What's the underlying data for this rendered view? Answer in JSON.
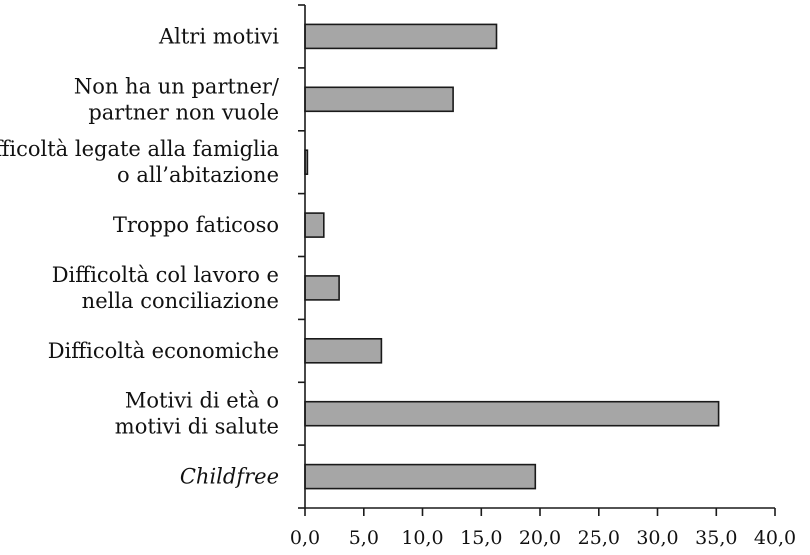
{
  "chart_data": {
    "type": "bar",
    "orientation": "horizontal",
    "title": "",
    "xlabel": "",
    "ylabel": "",
    "xlim": [
      0,
      40
    ],
    "xticks": [
      "0,0",
      "5,0",
      "10,0",
      "15,0",
      "20,0",
      "25,0",
      "30,0",
      "35,0",
      "40,0"
    ],
    "grid": false,
    "categories": [
      {
        "lines": [
          "Altri motivi"
        ],
        "italic": false
      },
      {
        "lines": [
          "Non ha un partner/",
          "partner non vuole"
        ],
        "italic": false
      },
      {
        "lines": [
          "Difficoltà legate alla famiglia",
          "o all’abitazione"
        ],
        "italic": false
      },
      {
        "lines": [
          "Troppo faticoso"
        ],
        "italic": false
      },
      {
        "lines": [
          "Difficoltà col lavoro e",
          "nella conciliazione"
        ],
        "italic": false
      },
      {
        "lines": [
          "Difficoltà economiche"
        ],
        "italic": false
      },
      {
        "lines": [
          "Motivi di età o",
          "motivi di salute"
        ],
        "italic": false
      },
      {
        "lines": [
          "Childfree"
        ],
        "italic": true
      }
    ],
    "values": [
      16.3,
      12.6,
      0.2,
      1.6,
      2.9,
      6.5,
      35.2,
      19.6
    ],
    "colors": {
      "bar_fill": "#a6a6a6",
      "bar_stroke": "#1a1a1a",
      "axis": "#1a1a1a"
    }
  }
}
